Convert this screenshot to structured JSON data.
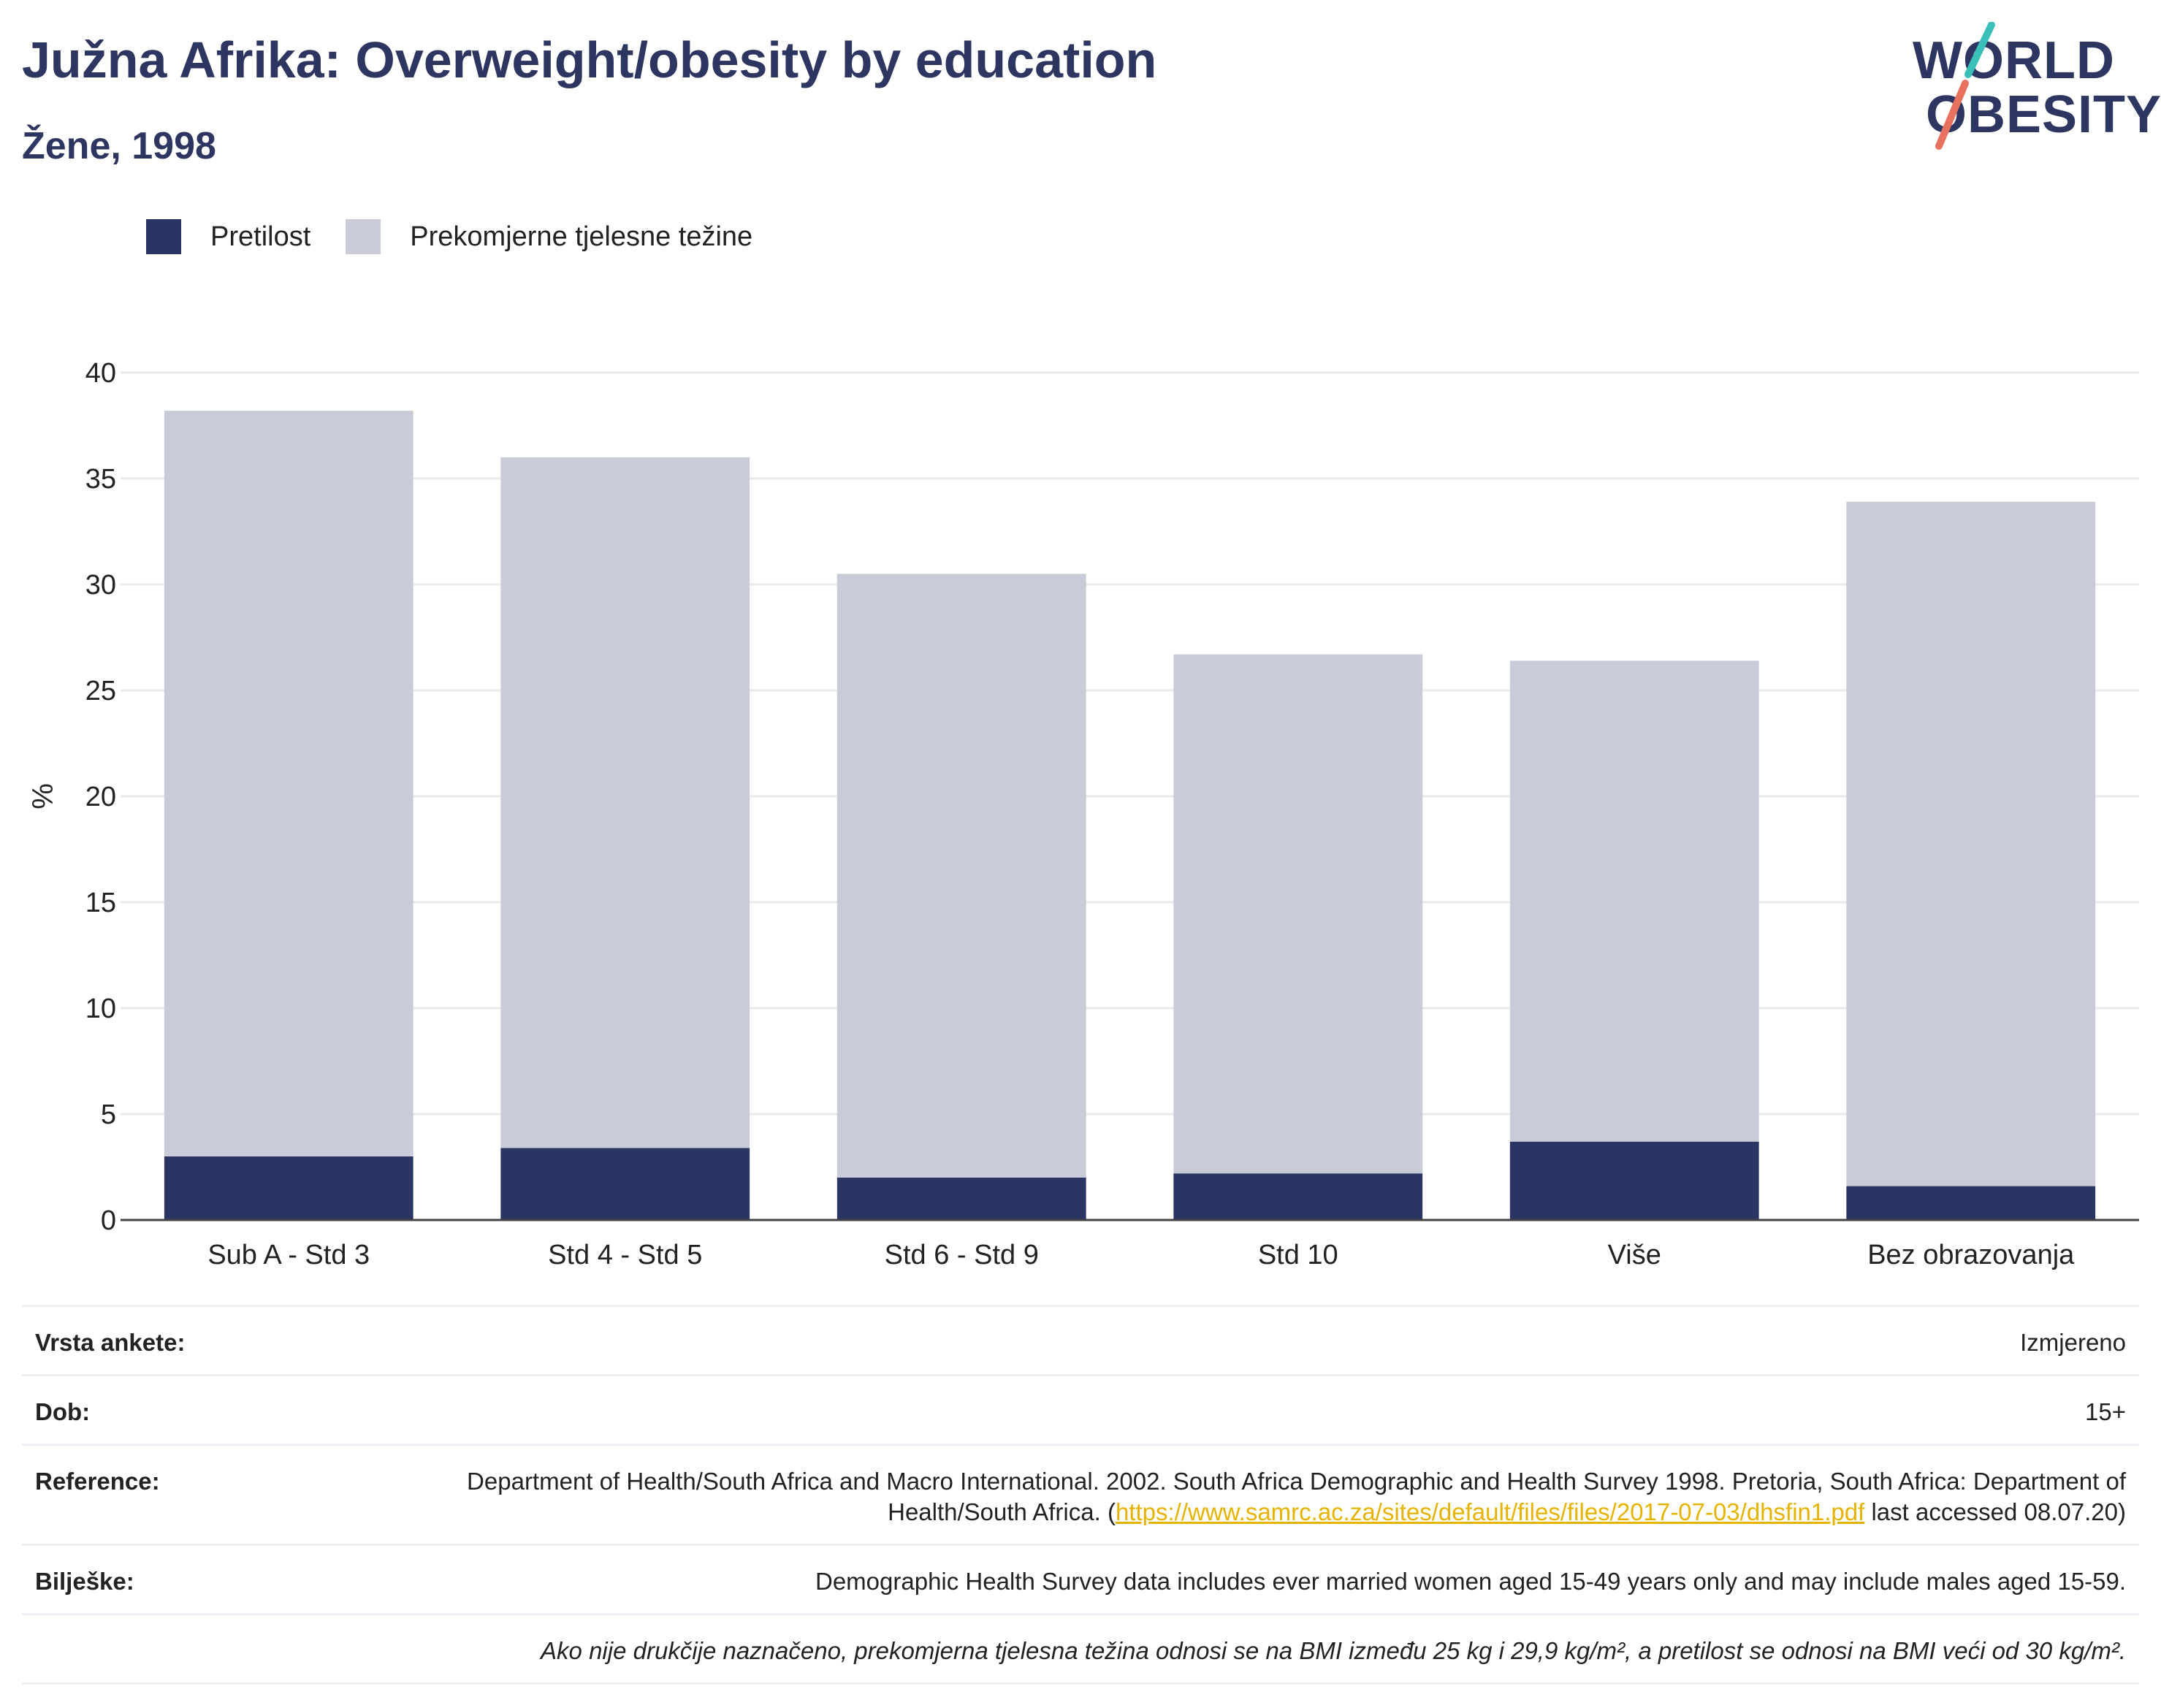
{
  "header": {
    "title": "Južna Afrika: Overweight/obesity by education",
    "subtitle": "Žene, 1998"
  },
  "logo": {
    "line1": "WORLD",
    "line2": "OBESITY",
    "colors": {
      "text": "#2d3561",
      "slash_top": "#3bbfb9",
      "slash_bottom": "#e8725f"
    }
  },
  "colors": {
    "obesity": "#2a3563",
    "overweight": "#c9ccd8",
    "grid": "#e9eaee",
    "axis": "#444444"
  },
  "chart_data": {
    "type": "bar",
    "stacked": true,
    "title": "Južna Afrika: Overweight/obesity by education",
    "subtitle": "Žene, 1998",
    "xlabel": "",
    "ylabel": "%",
    "ylim": [
      0,
      40
    ],
    "yticks": [
      0,
      5,
      10,
      15,
      20,
      25,
      30,
      35,
      40
    ],
    "grid": true,
    "legend_position": "top-left",
    "categories": [
      "Sub A - Std 3",
      "Std 4 - Std 5",
      "Std 6 - Std 9",
      "Std 10",
      "Više",
      "Bez obrazovanja"
    ],
    "series": [
      {
        "name": "Pretilost",
        "color": "#2a3563",
        "values": [
          3.0,
          3.4,
          2.0,
          2.2,
          3.7,
          1.6
        ]
      },
      {
        "name": "Prekomjerne tjelesne težine",
        "color": "#c9ccd8",
        "values": [
          35.2,
          32.6,
          28.5,
          24.5,
          22.7,
          32.3
        ]
      }
    ]
  },
  "info": {
    "survey_type": {
      "label": "Vrsta ankete:",
      "value": "Izmjereno"
    },
    "age": {
      "label": "Dob:",
      "value": "15+"
    },
    "reference": {
      "label": "Reference:",
      "text_before": "Department of Health/South Africa and Macro International. 2002. South Africa Demographic and Health Survey 1998. Pretoria, South Africa: Department of Health/South Africa. (",
      "link": "https://www.samrc.ac.za/sites/default/files/files/2017-07-03/dhsfin1.pdf",
      "text_after": " last accessed 08.07.20)"
    },
    "notes": {
      "label": "Bilješke:",
      "value": "Demographic Health Survey data includes ever married women aged 15-49 years only and may include males aged 15-59."
    },
    "definition": "Ako nije drukčije naznačeno, prekomjerna tjelesna težina odnosi se na BMI između 25 kg i 29,9 kg/m², a pretilost se odnosi na BMI veći od 30 kg/m²."
  }
}
